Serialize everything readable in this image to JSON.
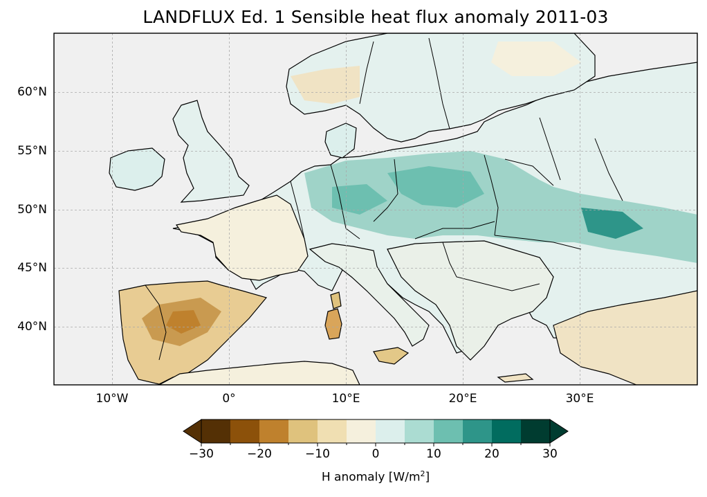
{
  "title": "LANDFLUX Ed. 1 Sensible heat flux anomaly 2011-03",
  "map": {
    "region": "Europe",
    "lon_range": [
      -15,
      40
    ],
    "lat_range": [
      35,
      65
    ],
    "x_ticks": [
      "10°W",
      "0°",
      "10°E",
      "20°E",
      "30°E"
    ],
    "y_ticks": [
      "60°N",
      "55°N",
      "50°N",
      "45°N",
      "40°N"
    ],
    "gridlines": true
  },
  "colorbar": {
    "label": "H anomaly [W/m²]",
    "label_prefix": "H anomaly [W/m",
    "label_sup": "2",
    "label_suffix": "]",
    "ticks": [
      "−30",
      "−20",
      "−10",
      "0",
      "10",
      "20",
      "30"
    ],
    "levels": [
      -30,
      -25,
      -20,
      -15,
      -10,
      -5,
      0,
      5,
      10,
      15,
      20,
      25,
      30
    ],
    "colors": [
      "#543005",
      "#8c510a",
      "#bf812d",
      "#dfc27d",
      "#f0dfb2",
      "#f5f0dd",
      "#dcefec",
      "#abdcd2",
      "#6dbfb0",
      "#2e9589",
      "#016c5f",
      "#003c30"
    ],
    "extend": "both"
  },
  "colors": {
    "ocean": "#f0f0f0",
    "coast": "#000000"
  }
}
